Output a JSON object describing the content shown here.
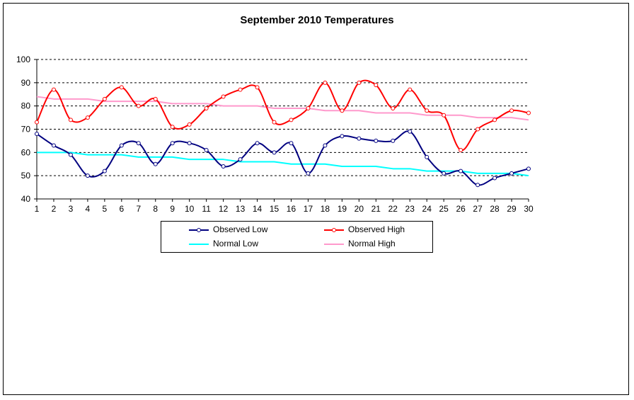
{
  "chart_data": {
    "type": "line",
    "title": "September 2010 Temperatures",
    "xlabel": "",
    "ylabel": "",
    "x": [
      1,
      2,
      3,
      4,
      5,
      6,
      7,
      8,
      9,
      10,
      11,
      12,
      13,
      14,
      15,
      16,
      17,
      18,
      19,
      20,
      21,
      22,
      23,
      24,
      25,
      26,
      27,
      28,
      29,
      30
    ],
    "ylim": [
      40,
      100
    ],
    "yticks": [
      40,
      50,
      60,
      70,
      80,
      90,
      100
    ],
    "grid": "horizontal dashed",
    "legend_position": "bottom",
    "series": [
      {
        "name": "Observed Low",
        "color": "#000080",
        "markers": true,
        "values": [
          68,
          63,
          59,
          50,
          52,
          63,
          64,
          55,
          64,
          64,
          61,
          54,
          57,
          64,
          60,
          64,
          51,
          63,
          67,
          66,
          65,
          65,
          69,
          58,
          51,
          52,
          46,
          49,
          51,
          53
        ]
      },
      {
        "name": "Observed High",
        "color": "#ff0000",
        "markers": true,
        "values": [
          73,
          87,
          74,
          75,
          83,
          88,
          80,
          83,
          71,
          72,
          79,
          84,
          87,
          88,
          73,
          74,
          79,
          90,
          78,
          90,
          89,
          79,
          87,
          78,
          76,
          61,
          70,
          74,
          78,
          77
        ]
      },
      {
        "name": "Normal Low",
        "color": "#00ffff",
        "markers": false,
        "values": [
          60,
          60,
          60,
          59,
          59,
          59,
          58,
          58,
          58,
          57,
          57,
          57,
          56,
          56,
          56,
          55,
          55,
          55,
          54,
          54,
          54,
          53,
          53,
          52,
          52,
          52,
          51,
          51,
          51,
          50
        ]
      },
      {
        "name": "Normal High",
        "color": "#ff99cc",
        "markers": false,
        "values": [
          84,
          83,
          83,
          83,
          82,
          82,
          82,
          82,
          81,
          81,
          81,
          80,
          80,
          80,
          79,
          79,
          79,
          78,
          78,
          78,
          77,
          77,
          77,
          76,
          76,
          76,
          75,
          75,
          75,
          74
        ]
      }
    ]
  },
  "legend": {
    "items": [
      {
        "label": "Observed Low"
      },
      {
        "label": "Observed High"
      },
      {
        "label": "Normal Low"
      },
      {
        "label": "Normal High"
      }
    ]
  }
}
